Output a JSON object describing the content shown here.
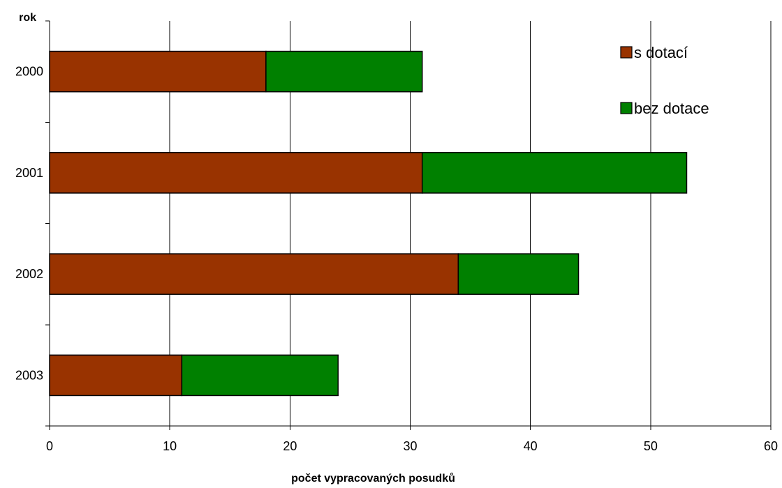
{
  "chart_data": {
    "type": "bar",
    "orientation": "horizontal",
    "stacked": true,
    "categories": [
      "2000",
      "2001",
      "2002",
      "2003"
    ],
    "series": [
      {
        "name": "s dotací",
        "color": "#993300",
        "values": [
          18,
          31,
          34,
          11
        ]
      },
      {
        "name": "bez dotace",
        "color": "#008000",
        "values": [
          13,
          22,
          10,
          13
        ]
      }
    ],
    "xlim": [
      0,
      60
    ],
    "xticks": [
      0,
      10,
      20,
      30,
      40,
      50,
      60
    ],
    "xlabel": "počet vypracovaných posudků",
    "ylabel": "rok",
    "grid": "vertical",
    "legend_position": "top-right"
  }
}
